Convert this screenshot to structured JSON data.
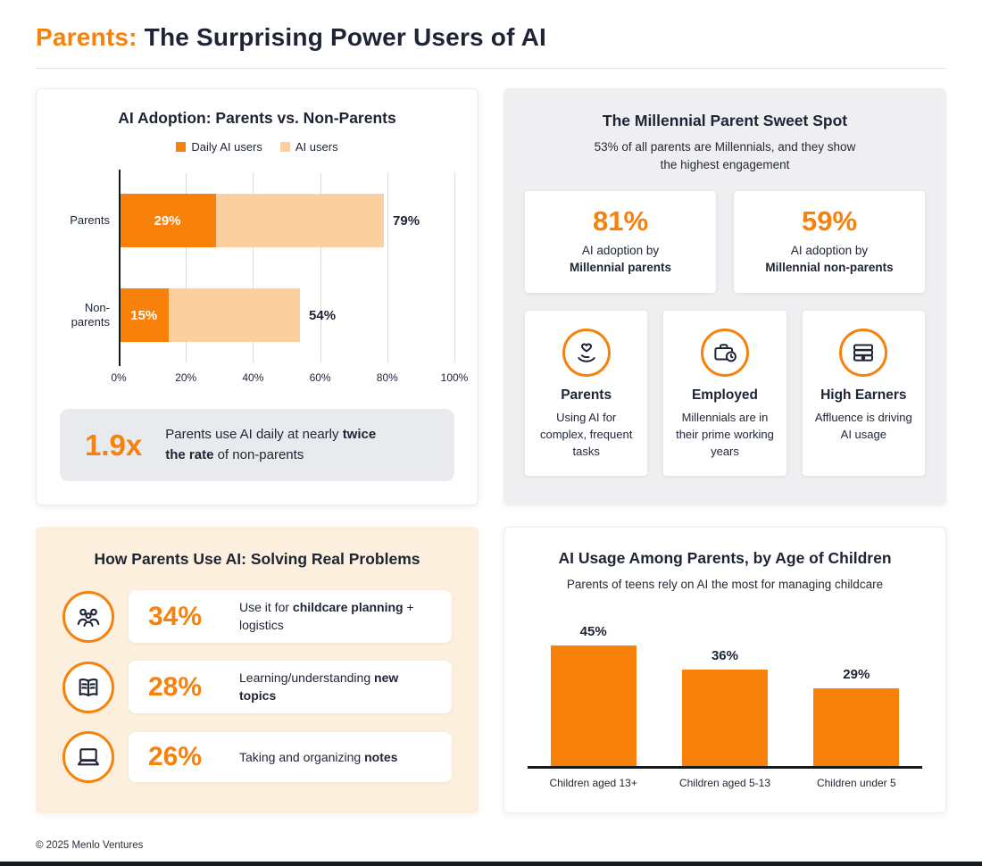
{
  "header": {
    "title_accent": "Parents:",
    "title_main": " The Surprising Power Users of AI"
  },
  "colors": {
    "accent_orange": "#F7810B",
    "light_orange_bar": "#FBCF9F",
    "panel_gray": "#EFEFF2",
    "panel_cream": "#FCEFDD",
    "dark_text": "#1D2433"
  },
  "adoption": {
    "title": "AI Adoption: Parents vs. Non-Parents",
    "legend": [
      {
        "label": "Daily AI users"
      },
      {
        "label": "AI users"
      }
    ],
    "callout": {
      "value": "1.9x",
      "pre": "Parents use AI daily at nearly ",
      "bold": "twice the rate",
      "post": " of non-parents"
    }
  },
  "millennial": {
    "title": "The Millennial Parent Sweet Spot",
    "subtitle": "53% of all parents are Millennials, and they show the highest engagement",
    "stats": [
      {
        "value": "81%",
        "line": "AI adoption by",
        "bold": "Millennial parents"
      },
      {
        "value": "59%",
        "line": "AI adoption by",
        "bold": "Millennial non-parents"
      }
    ],
    "features": [
      {
        "icon": "hand-heart-icon",
        "title": "Parents",
        "desc": "Using AI for complex, frequent tasks"
      },
      {
        "icon": "briefcase-clock-icon",
        "title": "Employed",
        "desc": "Millennials are in their prime working years"
      },
      {
        "icon": "money-stack-icon",
        "title": "High Earners",
        "desc": "Affluence is driving AI usage"
      }
    ]
  },
  "usage": {
    "title": "How Parents Use AI: Solving Real Problems",
    "rows": [
      {
        "icon": "family-icon",
        "value": "34%",
        "pre": "Use it for ",
        "bold": "childcare planning",
        "post": " + logistics"
      },
      {
        "icon": "book-icon",
        "value": "28%",
        "pre": "Learning/understanding ",
        "bold": "new topics",
        "post": ""
      },
      {
        "icon": "laptop-icon",
        "value": "26%",
        "pre": "Taking and organizing ",
        "bold": "notes",
        "post": ""
      }
    ]
  },
  "age_panel": {
    "title": "AI Usage Among Parents, by Age of Children",
    "subtitle": "Parents of teens rely on AI the most for managing childcare"
  },
  "footer": {
    "copyright": "© 2025 Menlo Ventures"
  },
  "chart_data": [
    {
      "type": "bar",
      "orientation": "horizontal",
      "title": "AI Adoption: Parents vs. Non-Parents",
      "categories": [
        "Parents",
        "Non-parents"
      ],
      "series": [
        {
          "name": "Daily AI users",
          "values": [
            29,
            15
          ],
          "color": "#F7810B"
        },
        {
          "name": "AI users",
          "values": [
            79,
            54
          ],
          "color": "#FBCF9F"
        }
      ],
      "xlim": [
        0,
        100
      ],
      "x_ticks": [
        "0%",
        "20%",
        "40%",
        "60%",
        "80%",
        "100%"
      ],
      "grid": true,
      "legend_position": "top"
    },
    {
      "type": "bar",
      "orientation": "vertical",
      "title": "AI Usage Among Parents, by Age of Children",
      "categories": [
        "Children aged 13+",
        "Children aged 5-13",
        "Children under 5"
      ],
      "values": [
        45,
        36,
        29
      ],
      "ylim": [
        0,
        50
      ],
      "color": "#F7810B",
      "grid": false
    }
  ]
}
